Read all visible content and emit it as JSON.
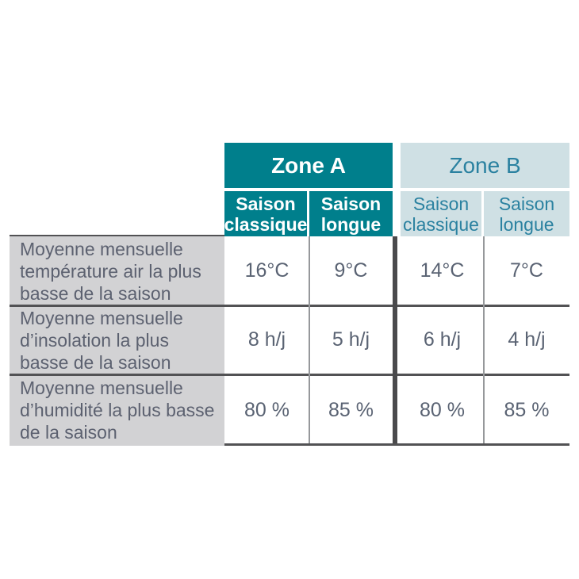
{
  "chart_data": {
    "type": "table",
    "column_groups": [
      {
        "label": "Zone A",
        "columns": [
          "Saison classique",
          "Saison longue"
        ]
      },
      {
        "label": "Zone B",
        "columns": [
          "Saison classique",
          "Saison longue"
        ]
      }
    ],
    "rows": [
      {
        "label": "Moyenne mensuelle température air la plus basse de la saison",
        "values": [
          "16°C",
          "9°C",
          "14°C",
          "7°C"
        ]
      },
      {
        "label": "Moyenne mensuelle d’insolation la plus basse de la saison",
        "values": [
          "8 h/j",
          "5 h/j",
          "6 h/j",
          "4 h/j"
        ]
      },
      {
        "label": "Moyenne mensuelle d’humidité la plus basse de la saison",
        "values": [
          "80 %",
          "85 %",
          "80 %",
          "85 %"
        ]
      }
    ],
    "layout": {
      "grid": "off",
      "zone_a_style": "solid teal header, white text",
      "zone_b_style": "light blue header, teal text"
    },
    "colors": {
      "teal": "#007f8c",
      "light_blue": "#cfe0e4",
      "teal_text": "#2a81a0",
      "label_bg": "#d2d2d4",
      "body_text": "#5a6373",
      "dark_rule": "#4a4a4c",
      "thin_rule": "#96989b"
    }
  }
}
